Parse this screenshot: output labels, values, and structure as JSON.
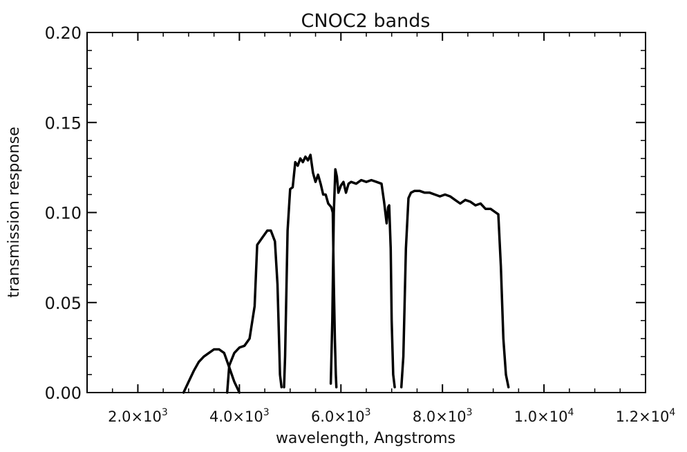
{
  "chart_data": {
    "type": "line",
    "title": "CNOC2 bands",
    "xlabel": "wavelength, Angstroms",
    "ylabel": "transmission response",
    "xlim": [
      1000,
      12000
    ],
    "ylim": [
      0,
      0.2
    ],
    "grid": false,
    "legend": "none",
    "line_color": "#000000",
    "x_ticks": [
      {
        "value": 2000,
        "mantissa": "2.0",
        "base": "10",
        "exp": "3"
      },
      {
        "value": 4000,
        "mantissa": "4.0",
        "base": "10",
        "exp": "3"
      },
      {
        "value": 6000,
        "mantissa": "6.0",
        "base": "10",
        "exp": "3"
      },
      {
        "value": 8000,
        "mantissa": "8.0",
        "base": "10",
        "exp": "3"
      },
      {
        "value": 10000,
        "mantissa": "1.0",
        "base": "10",
        "exp": "4"
      },
      {
        "value": 12000,
        "mantissa": "1.2",
        "base": "10",
        "exp": "4"
      }
    ],
    "y_ticks": [
      {
        "value": 0.0,
        "label": "0.00"
      },
      {
        "value": 0.05,
        "label": "0.05"
      },
      {
        "value": 0.1,
        "label": "0.10"
      },
      {
        "value": 0.15,
        "label": "0.15"
      },
      {
        "value": 0.2,
        "label": "0.20"
      }
    ],
    "series": [
      {
        "x": [
          2900,
          3000,
          3100,
          3200,
          3300,
          3400,
          3500,
          3600,
          3700,
          3800,
          3900,
          4000
        ],
        "y": [
          0.0,
          0.006,
          0.012,
          0.017,
          0.02,
          0.022,
          0.024,
          0.024,
          0.022,
          0.014,
          0.006,
          0.0
        ]
      },
      {
        "x": [
          3760,
          3800,
          3900,
          4000,
          4100,
          4200,
          4300,
          4350,
          4450,
          4550,
          4620,
          4700,
          4750,
          4780,
          4800,
          4830
        ],
        "y": [
          0.0,
          0.015,
          0.022,
          0.025,
          0.026,
          0.03,
          0.048,
          0.082,
          0.086,
          0.09,
          0.09,
          0.084,
          0.06,
          0.03,
          0.01,
          0.003
        ]
      },
      {
        "x": [
          4880,
          4900,
          4950,
          5000,
          5050,
          5100,
          5150,
          5200,
          5250,
          5300,
          5350,
          5400,
          5450,
          5500,
          5550,
          5600,
          5650,
          5700,
          5750,
          5780,
          5810,
          5840,
          5860,
          5880,
          5900,
          5910
        ],
        "y": [
          0.003,
          0.02,
          0.09,
          0.113,
          0.114,
          0.128,
          0.126,
          0.13,
          0.128,
          0.131,
          0.129,
          0.132,
          0.122,
          0.117,
          0.121,
          0.116,
          0.11,
          0.11,
          0.105,
          0.104,
          0.103,
          0.1,
          0.06,
          0.03,
          0.01,
          0.003
        ]
      },
      {
        "x": [
          5800,
          5830,
          5860,
          5890,
          5920,
          5950,
          6000,
          6050,
          6100,
          6150,
          6200,
          6300,
          6400,
          6500,
          6600,
          6700,
          6800,
          6850,
          6900,
          6930,
          6950,
          6980,
          7000,
          7030,
          7060
        ],
        "y": [
          0.005,
          0.04,
          0.1,
          0.124,
          0.12,
          0.111,
          0.115,
          0.117,
          0.111,
          0.116,
          0.117,
          0.116,
          0.118,
          0.117,
          0.118,
          0.117,
          0.116,
          0.106,
          0.094,
          0.103,
          0.104,
          0.08,
          0.04,
          0.01,
          0.003
        ]
      },
      {
        "x": [
          7190,
          7230,
          7280,
          7330,
          7380,
          7450,
          7550,
          7650,
          7750,
          7850,
          7950,
          8050,
          8150,
          8250,
          8350,
          8450,
          8550,
          8650,
          8750,
          8850,
          8950,
          9050,
          9100,
          9150,
          9200,
          9250,
          9300
        ],
        "y": [
          0.003,
          0.02,
          0.08,
          0.108,
          0.111,
          0.112,
          0.112,
          0.111,
          0.111,
          0.11,
          0.109,
          0.11,
          0.109,
          0.107,
          0.105,
          0.107,
          0.106,
          0.104,
          0.105,
          0.102,
          0.102,
          0.1,
          0.099,
          0.07,
          0.03,
          0.01,
          0.003
        ]
      }
    ]
  }
}
